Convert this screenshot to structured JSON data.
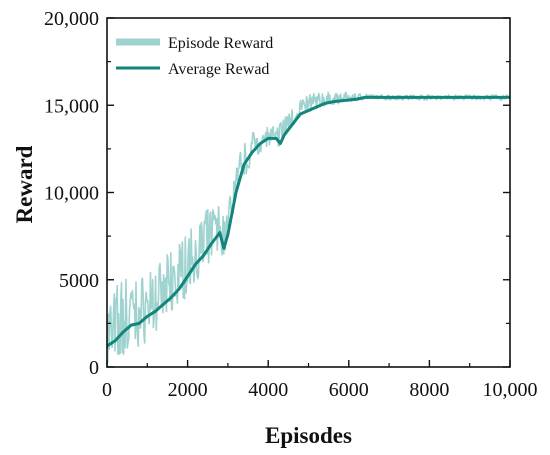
{
  "chart_data": {
    "type": "line",
    "xlabel": "Episodes",
    "ylabel": "Reward",
    "xlim": [
      0,
      10000
    ],
    "ylim": [
      0,
      20000
    ],
    "x_ticks": [
      0,
      2000,
      4000,
      6000,
      8000,
      10000
    ],
    "x_tick_labels": [
      "0",
      "2000",
      "4000",
      "6000",
      "8000",
      "10,000"
    ],
    "y_ticks": [
      0,
      5000,
      10000,
      15000,
      20000
    ],
    "y_tick_labels": [
      "0",
      "5000",
      "10,000",
      "15,000",
      "20,000"
    ],
    "grid": false,
    "legend_position": "top-left",
    "series": [
      {
        "name": "Episode Reward",
        "color": "#9fd3cf",
        "style": "noisy band",
        "x": [
          0,
          200,
          400,
          600,
          800,
          1000,
          1200,
          1400,
          1600,
          1800,
          2000,
          2200,
          2400,
          2600,
          2800,
          2900,
          3000,
          3200,
          3400,
          3600,
          3800,
          4000,
          4200,
          4400,
          4600,
          4800,
          5000,
          5200,
          5400,
          5600,
          5800,
          6000,
          6200,
          6400,
          6600,
          7000,
          8000,
          9000,
          10000
        ],
        "values": [
          1200,
          1800,
          2400,
          2700,
          2900,
          3300,
          3700,
          4100,
          4500,
          5000,
          5700,
          6300,
          7000,
          7600,
          7900,
          7200,
          8200,
          10200,
          11700,
          12400,
          12900,
          13200,
          13000,
          13700,
          14300,
          14800,
          15000,
          15100,
          15200,
          15300,
          15350,
          15400,
          15450,
          15450,
          15450,
          15450,
          15450,
          15450,
          15450
        ],
        "low_values": [
          0,
          0,
          300,
          700,
          1100,
          1500,
          2000,
          2500,
          3000,
          3400,
          4200,
          4900,
          5500,
          6100,
          6600,
          6300,
          7200,
          9300,
          10800,
          11700,
          12300,
          12600,
          12400,
          13100,
          13800,
          14300,
          14600,
          14800,
          14900,
          15000,
          15100,
          15150,
          15250,
          15350,
          15350,
          15300,
          15300,
          15300,
          15300
        ],
        "high_values": [
          4500,
          4800,
          5300,
          5100,
          5200,
          5400,
          5800,
          6200,
          6700,
          7200,
          7700,
          8300,
          8800,
          9300,
          9500,
          8600,
          9400,
          11800,
          12900,
          13400,
          13800,
          13900,
          13700,
          14400,
          15000,
          15400,
          15600,
          15700,
          15750,
          15750,
          15750,
          15750,
          15700,
          15650,
          15600,
          15600,
          15600,
          15600,
          15600
        ]
      },
      {
        "name": "Average Rewad",
        "color": "#12857c",
        "x": [
          0,
          200,
          400,
          600,
          800,
          1000,
          1200,
          1400,
          1600,
          1800,
          2000,
          2200,
          2400,
          2600,
          2800,
          2900,
          3000,
          3200,
          3400,
          3600,
          3800,
          4000,
          4200,
          4300,
          4400,
          4600,
          4800,
          5000,
          5200,
          5400,
          5600,
          5800,
          6000,
          6200,
          6400,
          7000,
          8000,
          9000,
          10000
        ],
        "values": [
          1200,
          1500,
          2000,
          2400,
          2500,
          2900,
          3200,
          3600,
          4000,
          4500,
          5200,
          5900,
          6400,
          7100,
          7700,
          6800,
          7600,
          10000,
          11600,
          12300,
          12800,
          13100,
          13100,
          12800,
          13300,
          13900,
          14500,
          14700,
          14900,
          15100,
          15200,
          15250,
          15300,
          15350,
          15450,
          15450,
          15450,
          15450,
          15450
        ]
      }
    ]
  }
}
